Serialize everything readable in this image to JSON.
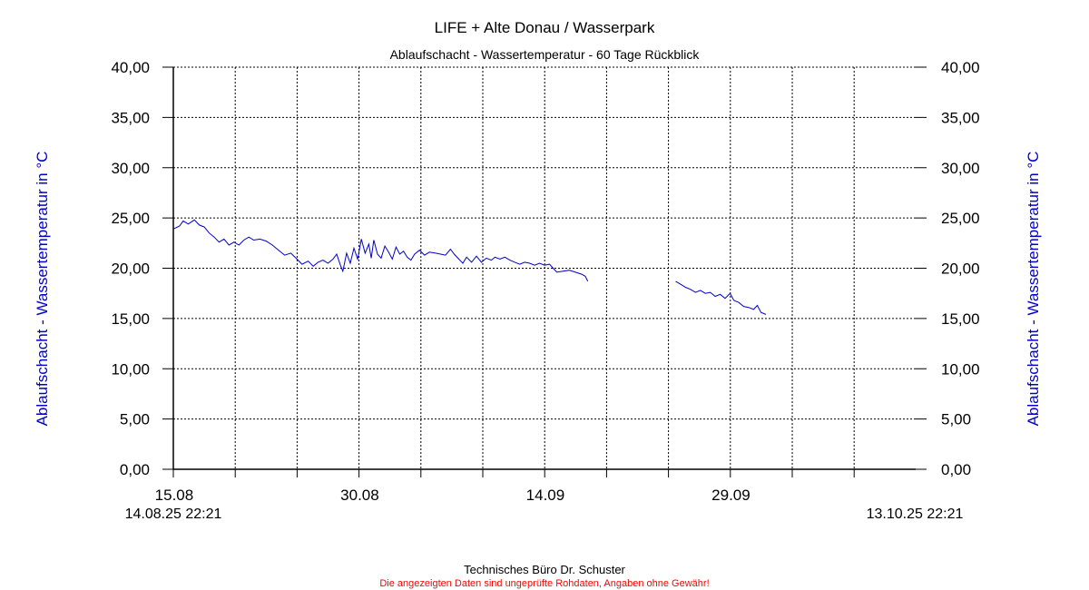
{
  "chart_data": {
    "type": "line",
    "title": "LIFE + Alte Donau / Wasserpark",
    "subtitle": "Ablaufschacht - Wassertemperatur - 60 Tage Rückblick",
    "ylabel_left": "Ablaufschacht - Wassertemperatur in °C",
    "ylabel_right": "Ablaufschacht - Wassertemperatur in °C",
    "ylim": [
      0,
      40
    ],
    "y_ticks": [
      "0,00",
      "5,00",
      "10,00",
      "15,00",
      "20,00",
      "25,00",
      "30,00",
      "35,00",
      "40,00"
    ],
    "x_range_days": [
      0,
      60
    ],
    "x_tick_labels": [
      {
        "day": 0.07,
        "label": "15.08"
      },
      {
        "day": 15.07,
        "label": "30.08"
      },
      {
        "day": 30.07,
        "label": "14.09"
      },
      {
        "day": 45.07,
        "label": "29.09"
      }
    ],
    "x_start_label": "14.08.25 22:21",
    "x_end_label": "13.10.25 22:21",
    "grid": true,
    "line_color": "#0000cc",
    "axis_label_color": "#0000cc",
    "series": [
      {
        "segments": [
          [
            [
              0.0,
              23.9
            ],
            [
              0.5,
              24.2
            ],
            [
              0.8,
              24.7
            ],
            [
              1.2,
              24.4
            ],
            [
              1.7,
              24.8
            ],
            [
              2.1,
              24.3
            ],
            [
              2.5,
              24.1
            ],
            [
              2.9,
              23.5
            ],
            [
              3.3,
              23.1
            ],
            [
              3.7,
              22.6
            ],
            [
              4.1,
              22.9
            ],
            [
              4.5,
              22.3
            ],
            [
              4.9,
              22.6
            ],
            [
              5.3,
              22.3
            ],
            [
              5.7,
              22.8
            ],
            [
              6.1,
              23.1
            ],
            [
              6.5,
              22.8
            ],
            [
              7.0,
              22.9
            ],
            [
              7.5,
              22.7
            ],
            [
              8.0,
              22.3
            ],
            [
              8.5,
              21.8
            ],
            [
              9.0,
              21.3
            ],
            [
              9.5,
              21.5
            ],
            [
              10.0,
              20.9
            ],
            [
              10.4,
              20.4
            ],
            [
              10.9,
              20.7
            ],
            [
              11.3,
              20.2
            ],
            [
              11.7,
              20.6
            ],
            [
              12.1,
              20.8
            ],
            [
              12.5,
              20.5
            ],
            [
              12.9,
              20.9
            ],
            [
              13.2,
              21.4
            ],
            [
              13.5,
              20.3
            ],
            [
              13.7,
              19.7
            ],
            [
              14.0,
              21.5
            ],
            [
              14.3,
              20.5
            ],
            [
              14.6,
              22.0
            ],
            [
              14.9,
              20.9
            ],
            [
              15.2,
              22.9
            ],
            [
              15.5,
              21.5
            ],
            [
              15.8,
              22.4
            ],
            [
              16.0,
              21.0
            ],
            [
              16.2,
              22.8
            ],
            [
              16.5,
              21.4
            ],
            [
              16.8,
              21.0
            ],
            [
              17.1,
              22.2
            ],
            [
              17.4,
              21.6
            ],
            [
              17.7,
              20.9
            ],
            [
              18.0,
              22.1
            ],
            [
              18.3,
              21.4
            ],
            [
              18.6,
              21.7
            ],
            [
              18.9,
              21.1
            ],
            [
              19.2,
              20.8
            ],
            [
              19.5,
              21.4
            ],
            [
              19.9,
              21.8
            ],
            [
              20.3,
              21.3
            ],
            [
              20.7,
              21.6
            ],
            [
              21.2,
              21.5
            ],
            [
              21.6,
              21.4
            ],
            [
              22.0,
              21.3
            ],
            [
              22.4,
              21.9
            ],
            [
              22.7,
              21.4
            ],
            [
              23.0,
              21.0
            ],
            [
              23.4,
              20.5
            ],
            [
              23.7,
              21.1
            ],
            [
              24.1,
              20.6
            ],
            [
              24.5,
              21.2
            ],
            [
              24.9,
              20.6
            ],
            [
              25.3,
              21.0
            ],
            [
              25.7,
              20.8
            ],
            [
              26.0,
              21.1
            ],
            [
              26.4,
              20.9
            ],
            [
              26.8,
              21.1
            ],
            [
              27.2,
              20.8
            ],
            [
              27.6,
              20.6
            ],
            [
              28.0,
              20.4
            ],
            [
              28.4,
              20.6
            ],
            [
              28.8,
              20.5
            ],
            [
              29.2,
              20.3
            ],
            [
              29.6,
              20.5
            ],
            [
              30.0,
              20.3
            ],
            [
              30.4,
              20.4
            ],
            [
              30.7,
              20.0
            ],
            [
              31.0,
              19.6
            ],
            [
              31.5,
              19.7
            ],
            [
              32.0,
              19.8
            ],
            [
              32.5,
              19.6
            ],
            [
              33.0,
              19.4
            ],
            [
              33.3,
              19.2
            ],
            [
              33.5,
              18.7
            ]
          ],
          [
            [
              40.6,
              18.7
            ],
            [
              41.0,
              18.4
            ],
            [
              41.4,
              18.1
            ],
            [
              41.8,
              17.9
            ],
            [
              42.2,
              17.6
            ],
            [
              42.6,
              17.8
            ],
            [
              43.0,
              17.5
            ],
            [
              43.4,
              17.6
            ],
            [
              43.8,
              17.2
            ],
            [
              44.2,
              17.4
            ],
            [
              44.6,
              17.0
            ],
            [
              45.0,
              17.5
            ],
            [
              45.3,
              16.8
            ],
            [
              45.7,
              16.6
            ],
            [
              46.1,
              16.2
            ],
            [
              46.5,
              16.1
            ],
            [
              46.9,
              15.9
            ],
            [
              47.2,
              16.3
            ],
            [
              47.5,
              15.6
            ],
            [
              47.9,
              15.4
            ]
          ]
        ]
      }
    ]
  },
  "footer": {
    "credit": "Technisches Büro Dr. Schuster",
    "disclaimer": "Die angezeigten Daten sind ungeprüfte Rohdaten, Angaben ohne Gewähr!"
  }
}
